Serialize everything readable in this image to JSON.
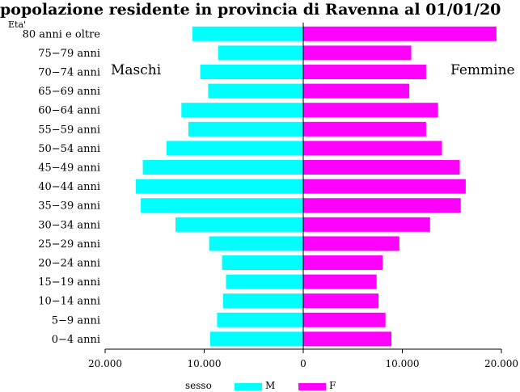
{
  "chart_data": {
    "type": "bar",
    "orientation": "horizontal",
    "layout": "population-pyramid",
    "title": "popolazione residente in provincia di Ravenna al 01/01/20",
    "ylabel": "Eta'",
    "categories": [
      "80 anni e oltre",
      "75−79 anni",
      "70−74 anni",
      "65−69 anni",
      "60−64 anni",
      "55−59 anni",
      "50−54 anni",
      "45−49 anni",
      "40−44 anni",
      "35−39 anni",
      "30−34 anni",
      "25−29 anni",
      "20−24 anni",
      "15−19 anni",
      "10−14 anni",
      "5−9 anni",
      "0−4 anni"
    ],
    "series": [
      {
        "name": "M",
        "color": "#00ffff",
        "side": "left",
        "values": [
          11200,
          8600,
          10400,
          9600,
          12300,
          11600,
          13800,
          16200,
          16900,
          16400,
          12900,
          9500,
          8200,
          7800,
          8100,
          8700,
          9400
        ]
      },
      {
        "name": "F",
        "color": "#ff00ff",
        "side": "right",
        "values": [
          19500,
          10900,
          12400,
          10700,
          13600,
          12400,
          14000,
          15800,
          16400,
          15900,
          12800,
          9700,
          8000,
          7400,
          7600,
          8300,
          8900
        ]
      }
    ],
    "xticks": [
      "20.000",
      "10.000",
      "0",
      "10.000",
      "20.000"
    ],
    "xlim": [
      -20000,
      20000
    ],
    "annotations": {
      "left": "Maschi",
      "right": "Femmine"
    },
    "legend": {
      "title": "sesso",
      "position": "bottom"
    },
    "grid": false
  }
}
